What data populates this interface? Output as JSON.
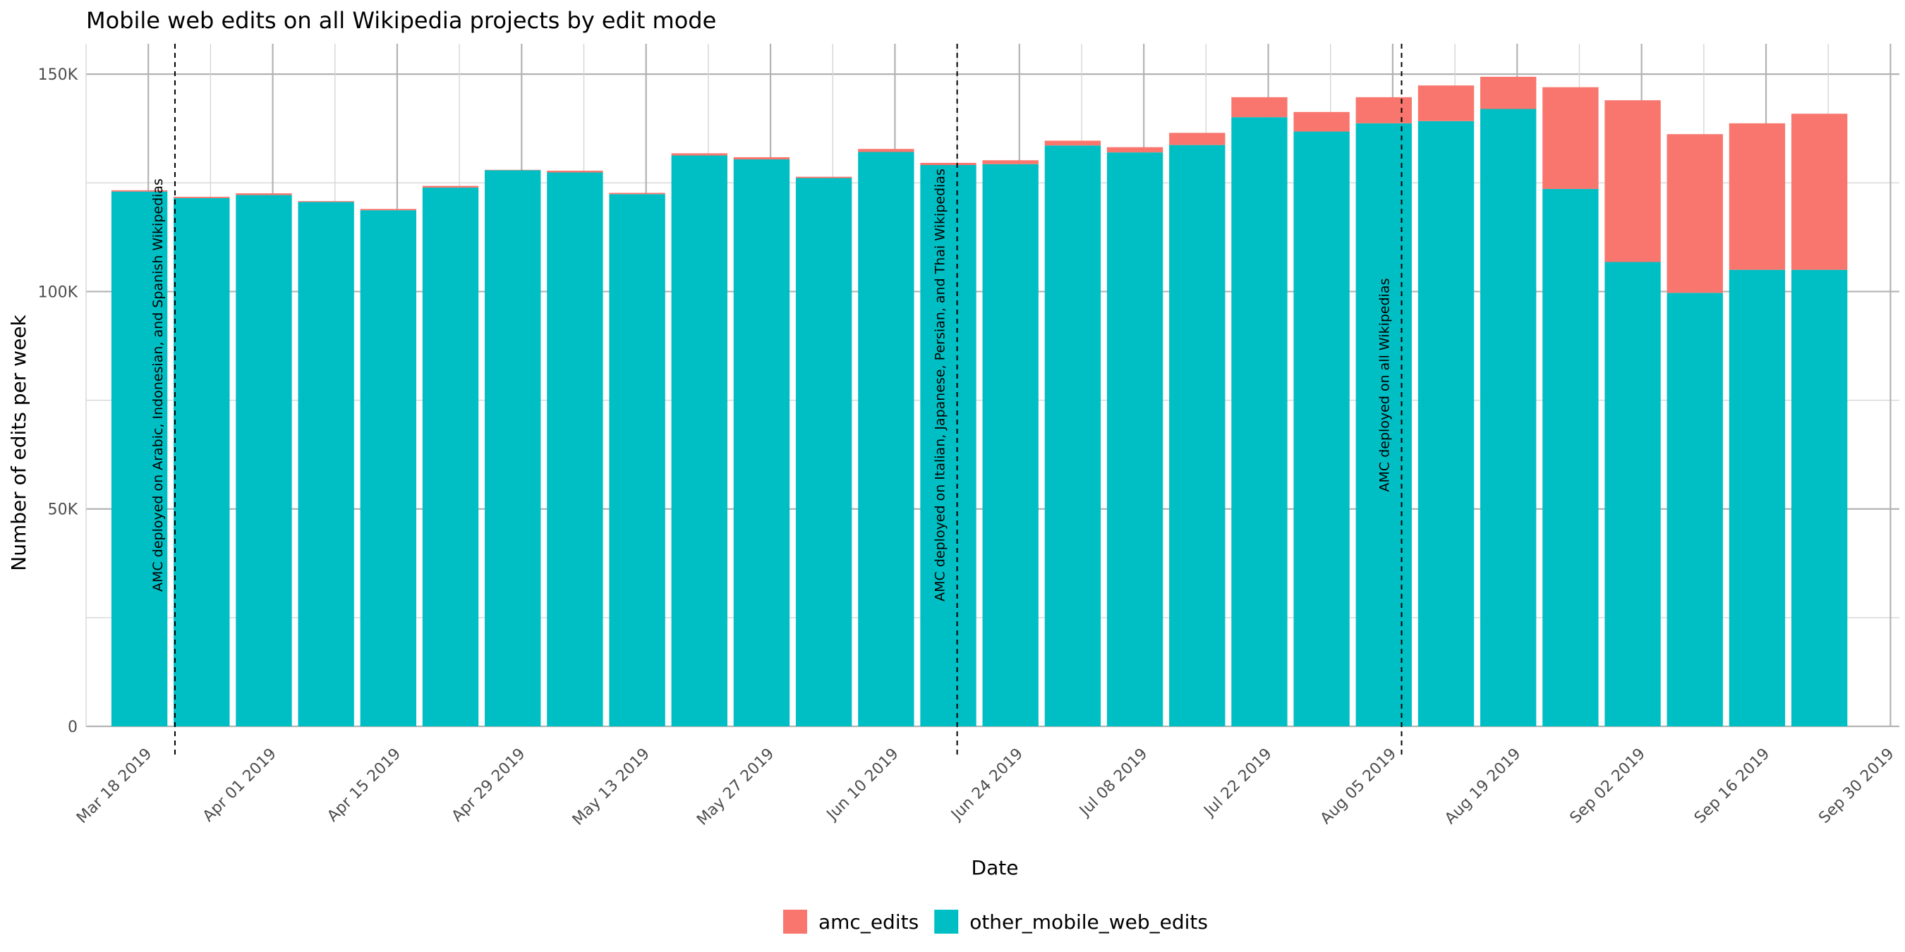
{
  "chart_data": {
    "type": "bar",
    "stacked": true,
    "title": "Mobile web edits on all Wikipedia projects by edit mode",
    "xlabel": "Date",
    "ylabel": "Number of edits per week",
    "ylim": [
      0,
      157000
    ],
    "y_ticks": [
      {
        "value": 0,
        "label": "0"
      },
      {
        "value": 50000,
        "label": "50K"
      },
      {
        "value": 100000,
        "label": "100K"
      },
      {
        "value": 150000,
        "label": "150K"
      }
    ],
    "x_tick_labels": [
      "Mar 18 2019",
      "Apr 01 2019",
      "Apr 15 2019",
      "Apr 29 2019",
      "May 13 2019",
      "May 27 2019",
      "Jun 10 2019",
      "Jun 24 2019",
      "Jul 08 2019",
      "Jul 22 2019",
      "Aug 05 2019",
      "Aug 19 2019",
      "Sep 02 2019",
      "Sep 16 2019",
      "Sep 30 2019"
    ],
    "x_range": [
      "2019-03-11",
      "2019-10-01"
    ],
    "categories": [
      "2019-03-17",
      "2019-03-24",
      "2019-03-31",
      "2019-04-07",
      "2019-04-14",
      "2019-04-21",
      "2019-04-28",
      "2019-05-05",
      "2019-05-12",
      "2019-05-19",
      "2019-05-26",
      "2019-06-02",
      "2019-06-09",
      "2019-06-16",
      "2019-06-23",
      "2019-06-30",
      "2019-07-07",
      "2019-07-14",
      "2019-07-21",
      "2019-07-28",
      "2019-08-04",
      "2019-08-11",
      "2019-08-18",
      "2019-08-25",
      "2019-09-01",
      "2019-09-08",
      "2019-09-15",
      "2019-09-22"
    ],
    "series": [
      {
        "name": "other_mobile_web_edits",
        "color": "#00BFC4",
        "values": [
          123000,
          121500,
          122200,
          120600,
          118700,
          123900,
          127900,
          127400,
          122400,
          131300,
          130400,
          126100,
          132100,
          129100,
          129300,
          133600,
          132000,
          133700,
          140100,
          136800,
          138700,
          139200,
          142000,
          123600,
          106800,
          99700,
          105000,
          105000
        ]
      },
      {
        "name": "amc_edits",
        "color": "#F8766D",
        "values": [
          300,
          300,
          400,
          200,
          300,
          400,
          100,
          400,
          300,
          500,
          500,
          300,
          700,
          500,
          900,
          1100,
          1200,
          2800,
          4600,
          4500,
          6000,
          8200,
          7400,
          23400,
          37200,
          36500,
          33700,
          35900
        ]
      }
    ],
    "annotations": [
      {
        "date": "2019-03-21",
        "text": "AMC deployed on Arabic, Indonesian, and Spanish Wikipedias"
      },
      {
        "date": "2019-06-17",
        "text": "AMC deployed on Italian, Japanese, Persian, and Thai Wikipedias"
      },
      {
        "date": "2019-08-06",
        "text": "AMC deployed on all Wikipedias"
      }
    ],
    "grid": true,
    "legend_position": "bottom",
    "legend": [
      {
        "label": "amc_edits",
        "color": "#F8766D"
      },
      {
        "label": "other_mobile_web_edits",
        "color": "#00BFC4"
      }
    ]
  }
}
